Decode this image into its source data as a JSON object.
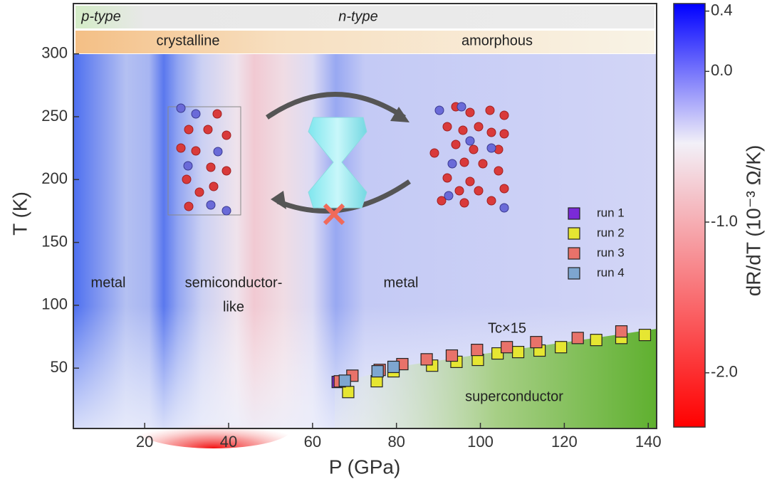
{
  "chart_data": {
    "type": "scatter",
    "x_label": "P (GPa)",
    "y_label": "T (K)",
    "xlim": [
      3,
      142
    ],
    "ylim": [
      2,
      340
    ],
    "xticks": [
      20,
      40,
      60,
      80,
      100,
      120,
      140
    ],
    "yticks": [
      50,
      100,
      150,
      200,
      250,
      300
    ],
    "band_labels": {
      "top": [
        "p-type",
        "n-type"
      ],
      "structure": [
        "crystalline",
        "amorphous"
      ]
    },
    "annotations": [
      "metal",
      "semiconductor-",
      "like",
      "metal",
      "superconductor",
      "Tc×15"
    ],
    "series": [
      {
        "name": "run 1",
        "color": "#7b2ad8",
        "x": [
          66
        ],
        "values": [
          39
        ]
      },
      {
        "name": "run 2",
        "color": "#e6e632",
        "x": [
          68.5,
          75.3,
          79.3,
          88.5,
          94.3,
          99.4,
          104.1,
          109,
          114.1,
          119.2,
          127.6,
          133.6,
          139.2
        ],
        "values": [
          31,
          39.6,
          47.5,
          52,
          55,
          56.6,
          61.7,
          62.8,
          64,
          66.7,
          72.4,
          74,
          76.4
        ]
      },
      {
        "name": "run 3",
        "color": "#e8726a",
        "x": [
          66.5,
          69.5,
          76,
          81.4,
          87.2,
          93.2,
          99.2,
          106.3,
          113.3,
          123.2,
          133.6
        ],
        "values": [
          39.5,
          44,
          48.6,
          53.2,
          57,
          60,
          64.5,
          66.7,
          70.7,
          74,
          79.2
        ]
      },
      {
        "name": "run 4",
        "color": "#7ea6d0",
        "x": [
          67.7,
          75.5,
          79.3
        ],
        "values": [
          40,
          47.5,
          51
        ]
      }
    ],
    "colorbar": {
      "label": "dR/dT (10⁻³ Ω/K)",
      "lim": [
        -2.36,
        0.45
      ],
      "ticks": [
        {
          "value": 0.4,
          "label": "0.4"
        },
        {
          "value": 0,
          "label": "0.0"
        },
        {
          "value": -1,
          "label": "-1.0"
        },
        {
          "value": -2,
          "label": "-2.0"
        }
      ]
    }
  }
}
